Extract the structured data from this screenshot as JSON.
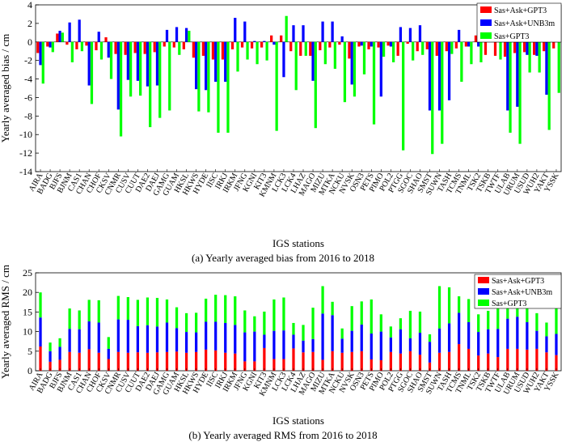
{
  "chart_data": [
    {
      "type": "bar",
      "panel": "a",
      "caption": "(a) Yearly averaged bias from 2016 to 2018",
      "xlabel": "IGS stations",
      "ylabel": "Yearly averaged bias / cm",
      "ylim": [
        -14,
        4
      ],
      "yticks": [
        4,
        2,
        0,
        -2,
        -4,
        -6,
        -8,
        -10,
        -12,
        -14
      ],
      "grid": false,
      "legend_position": "top-right",
      "categories": [
        "AIRA",
        "BADG",
        "BJFS",
        "BJNM",
        "CAS1",
        "CHAN",
        "CHOF",
        "CKSV",
        "CNMR",
        "CUSV",
        "CUUT",
        "DAE2",
        "DAEJ",
        "GAMG",
        "GUAM",
        "HKSL",
        "HKWS",
        "HYDE",
        "IISC",
        "IRKJ",
        "IRKM",
        "JFNG",
        "KGNI",
        "KIT3",
        "KMNM",
        "LCK3",
        "LCK4",
        "LHAZ",
        "MAGO",
        "MIZU",
        "MTKA",
        "NCKU",
        "NVSK",
        "OSN3",
        "PETS",
        "PIMO",
        "POL2",
        "PTGG",
        "SGOC",
        "SHAO",
        "SMST",
        "SUWN",
        "TASH",
        "TCMS",
        "TNML",
        "TSK2",
        "TSKB",
        "TWTF",
        "ULAB",
        "URUM",
        "USUD",
        "WUH2",
        "YAKT",
        "YSSK"
      ],
      "tick_labels": [
        "AIRA",
        "BADG",
        "BJFS",
        "BJNM",
        "CAS1",
        "CHAN",
        "CHOF",
        "CKSV",
        "CNMR",
        "CUSV",
        "CUUT",
        "DAE2",
        "DAEJ",
        "GAMG",
        "GUAM",
        "HKSL",
        "HKWS",
        "HYDE",
        "IISC",
        "IRKJ",
        "IRKM",
        "JFNG",
        "KGNI",
        "KIT3",
        "KMNM",
        "LCK3",
        "LCK4",
        "LHAZ",
        "MAGO",
        "MIZU",
        "MTKA",
        "NCKU",
        "NVSK",
        "OSN3",
        "PETS",
        "PIMO",
        "POL2",
        "PTGG",
        "SGOC",
        "SHAO",
        "SMST",
        "SUWN",
        "TASH",
        "TCMS",
        "TNML",
        "TSK2",
        "TSKB",
        "TWTF",
        "ULAB",
        "URUM",
        "USUD",
        "WUH2",
        "YAKT",
        "YSSK"
      ],
      "series": [
        {
          "name": "Sas+Ask+GPT3",
          "color": "#ff0000",
          "values": [
            -1.2,
            -0.5,
            0.9,
            -0.3,
            -0.8,
            -0.4,
            -0.9,
            0.5,
            -1.3,
            -1.4,
            -1.2,
            -1.3,
            -1.1,
            -0.5,
            -0.6,
            -0.8,
            -1.7,
            -1.5,
            -1.9,
            -1.9,
            -0.8,
            -0.6,
            -0.7,
            -0.6,
            0.7,
            0.7,
            -1.0,
            -1.5,
            -1.5,
            -0.9,
            -0.6,
            -0.3,
            -1.8,
            -0.5,
            -0.8,
            -0.6,
            -0.4,
            -1.5,
            -0.2,
            -1.0,
            -0.8,
            -1.5,
            -1.0,
            -0.7,
            -0.5,
            0.7,
            -1.4,
            -1.5,
            -1.6,
            -1.2,
            -1.1,
            -1.4,
            -1.0,
            -0.7
          ]
        },
        {
          "name": "Sas+Ask+UNB3m",
          "color": "#0000ff",
          "values": [
            -2.5,
            -0.6,
            1.2,
            2.1,
            2.4,
            -4.7,
            1.1,
            -1.7,
            -7.3,
            -4.1,
            -4.2,
            -4.8,
            -4.7,
            1.3,
            1.6,
            1.5,
            -5.1,
            -5.2,
            -4.3,
            -4.3,
            2.6,
            2.2,
            0.1,
            0.1,
            -0.3,
            -3.8,
            1.8,
            1.8,
            -4.2,
            2.2,
            2.2,
            0.6,
            -4.6,
            -0.4,
            -0.5,
            -5.9,
            -0.5,
            1.6,
            1.5,
            1.8,
            -7.4,
            -7.4,
            -6.3,
            1.3,
            -0.5,
            -0.5,
            1.1,
            1.5,
            -7.4,
            -7.0,
            -1.4,
            -1.5,
            -5.7,
            0.4
          ]
        },
        {
          "name": "Sas+GPT3",
          "color": "#00ff00",
          "values": [
            -4.5,
            -1.1,
            1.0,
            -2.2,
            -1.0,
            -6.7,
            -1.9,
            -4.0,
            -10.2,
            -5.9,
            -5.8,
            -9.2,
            -8.2,
            -7.4,
            -1.4,
            1.2,
            -7.5,
            -7.6,
            -9.8,
            -9.8,
            -3.2,
            -1.9,
            -2.4,
            -2.0,
            -9.6,
            2.8,
            -5.2,
            -1.5,
            -9.3,
            -2.4,
            -2.9,
            -6.5,
            -5.9,
            -3.5,
            -8.9,
            -1.6,
            -2.2,
            -11.7,
            -2.0,
            -1.4,
            -12.1,
            -11.0,
            -1.3,
            -4.3,
            -2.4,
            -2.2,
            2.6,
            -1.9,
            -9.8,
            -11.0,
            -3.3,
            -3.3,
            -9.5,
            -5.5
          ]
        }
      ]
    },
    {
      "type": "bar",
      "stacked": true,
      "panel": "b",
      "caption": "(b) Yearly averaged RMS from 2016 to 2018",
      "xlabel": "IGS stations",
      "ylabel": "Yearly averaged RMS / cm",
      "ylim": [
        0,
        25
      ],
      "yticks": [
        25,
        20,
        15,
        10,
        5,
        0
      ],
      "grid": false,
      "legend_position": "top-right",
      "categories": [
        "AIRA",
        "BADG",
        "BJFS",
        "BJNM",
        "CAS1",
        "CHAN",
        "CHOF",
        "CKSV",
        "CNMR",
        "CUSV",
        "CUUT",
        "DAE2",
        "DAEJ",
        "GAMG",
        "GUAM",
        "HKSL",
        "HKWS",
        "HYDE",
        "IISC",
        "IRKJ",
        "IRKM",
        "JFNG",
        "KGNI",
        "KIT3",
        "KMNM",
        "LCK3",
        "LCK4",
        "LHAZ",
        "MAGO",
        "MIZU",
        "MTKA",
        "NCKU",
        "NVSK",
        "OSN3",
        "PETS",
        "PIMO",
        "POL2",
        "PTGG",
        "SGOC",
        "SHAO",
        "SMST",
        "SUWN",
        "TASH",
        "TCMS",
        "TNML",
        "TSK2",
        "TSKB",
        "TWTF",
        "ULAB",
        "URUM",
        "USUD",
        "WUH2",
        "YAKT",
        "YSSK"
      ],
      "tick_labels": [
        "AIRA",
        "BADG",
        "BJFS",
        "BJNM",
        "CAS1",
        "CHAN",
        "CHOF",
        "CKSV",
        "CNMR",
        "CUSV",
        "CUUT",
        "DAE2",
        "DAEJ",
        "GAMG",
        "GUAM",
        "HKSL",
        "HKWS",
        "HYDE",
        "IISC",
        "IRKJ",
        "IRKM",
        "JFNG",
        "KGNI",
        "KIT3",
        "KMNM",
        "LCK3",
        "LCK4",
        "LHAZ",
        "MAGO",
        "MIZU",
        "MTKA",
        "NCKU",
        "NVSK",
        "OSN3",
        "PETS",
        "PIMO",
        "POL2",
        "PTGG",
        "SGOC",
        "SHAO",
        "SMST",
        "SUWN",
        "TASH",
        "TCMS",
        "TNML",
        "TSK2",
        "TSKB",
        "TWTF",
        "ULAB",
        "URUM",
        "USUD",
        "WUH2",
        "YAKT",
        "YSSK"
      ],
      "series": [
        {
          "name": "Sas+Ask+GPT3",
          "color": "#ff0000",
          "values": [
            6.2,
            2.3,
            2.8,
            4.8,
            4.6,
            5.5,
            4.6,
            3.0,
            4.8,
            4.6,
            4.7,
            4.6,
            4.7,
            4.8,
            4.9,
            4.6,
            4.8,
            5.4,
            5.2,
            4.6,
            4.4,
            2.4,
            2.4,
            5.8,
            3.0,
            3.0,
            5.7,
            4.7,
            4.8,
            2.8,
            5.0,
            4.6,
            4.8,
            5.0,
            2.9,
            2.7,
            4.8,
            4.4,
            5.0,
            4.1,
            2.1,
            4.6,
            4.8,
            6.8,
            5.6,
            3.9,
            4.4,
            3.5,
            5.6,
            5.6,
            5.4,
            5.6,
            4.7,
            4.0
          ]
        },
        {
          "name": "Sas+Ask+UNB3m",
          "color": "#0000ff",
          "values": [
            7.4,
            2.7,
            3.3,
            5.9,
            6.0,
            7.1,
            7.7,
            2.6,
            8.3,
            8.4,
            6.7,
            7.0,
            6.6,
            7.5,
            6.0,
            5.3,
            5.0,
            7.1,
            7.3,
            7.6,
            7.3,
            7.4,
            7.6,
            3.4,
            7.2,
            7.3,
            3.5,
            3.0,
            3.3,
            11.8,
            9.2,
            3.6,
            5.4,
            6.8,
            6.6,
            7.3,
            3.7,
            6.2,
            3.3,
            5.6,
            5.3,
            6.2,
            7.3,
            8.0,
            6.8,
            6.0,
            6.2,
            7.2,
            7.7,
            8.2,
            7.0,
            4.6,
            4.1,
            5.4
          ]
        },
        {
          "name": "Sas+GPT3",
          "color": "#00ff00",
          "values": [
            6.4,
            2.2,
            2.2,
            5.2,
            4.8,
            5.5,
            5.7,
            3.0,
            6.0,
            5.8,
            6.7,
            7.1,
            7.3,
            5.9,
            5.3,
            4.8,
            5.0,
            5.9,
            6.9,
            7.1,
            7.3,
            5.6,
            3.9,
            5.9,
            8.0,
            8.4,
            3.0,
            4.0,
            8.0,
            7.0,
            3.4,
            2.6,
            6.3,
            5.9,
            8.7,
            4.4,
            2.8,
            2.8,
            7.0,
            5.4,
            1.9,
            10.8,
            9.2,
            4.2,
            5.9,
            4.5,
            4.7,
            6.8,
            6.7,
            6.4,
            5.8,
            4.5,
            3.5,
            6.6
          ]
        }
      ]
    }
  ]
}
